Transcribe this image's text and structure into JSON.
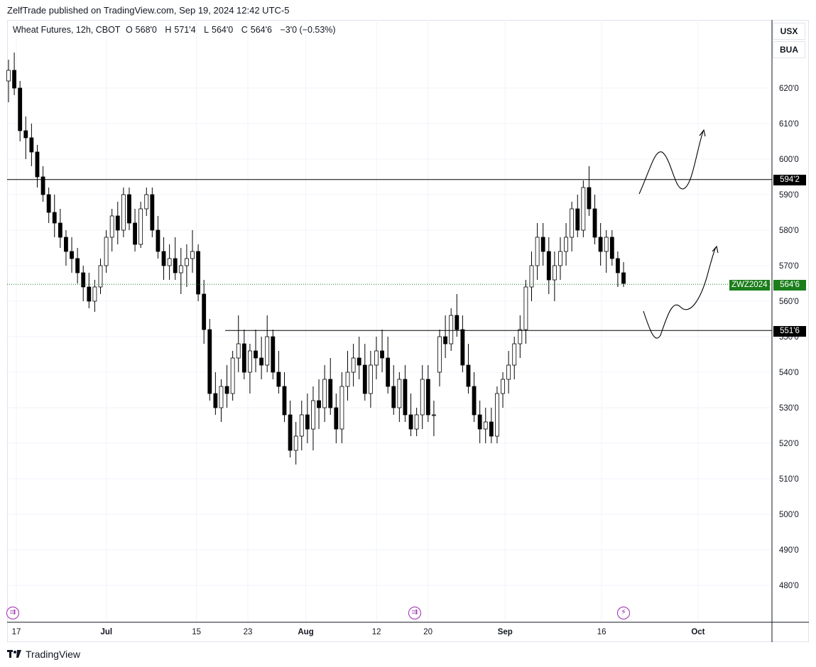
{
  "header": {
    "publish_text": "ZelfTrade published on TradingView.com, Sep 19, 2024 12:42 UTC-5"
  },
  "legend": {
    "symbol": "Wheat Futures, 12h, CBOT",
    "o_label": "O",
    "o_value": "568'0",
    "h_label": "H",
    "h_value": "571'4",
    "l_label": "L",
    "l_value": "564'0",
    "c_label": "C",
    "c_value": "564'6",
    "change": "−3'0 (−0.53%)"
  },
  "currency_buttons": [
    "USX",
    "BUA"
  ],
  "footer": {
    "brand": "TradingView"
  },
  "colors": {
    "up_fill": "#ffffff",
    "down_fill": "#000000",
    "candle_stroke": "#000000",
    "current_price": "#1b7e1b",
    "level_label_bg": "#000000",
    "event_icon": "#9c27b0"
  },
  "chart_data": {
    "type": "candlestick",
    "symbol": "ZWZ2024",
    "timeframe": "12h",
    "y_unit": "cents/bu (price'eighths)",
    "ylim": [
      470,
      632
    ],
    "y_ticks": [
      "480'0",
      "490'0",
      "500'0",
      "510'0",
      "520'0",
      "530'0",
      "540'0",
      "550'0",
      "560'0",
      "570'0",
      "580'0",
      "590'0",
      "600'0",
      "610'0",
      "620'0"
    ],
    "x_tick_labels": [
      "17",
      "Jul",
      "15",
      "23",
      "Aug",
      "12",
      "20",
      "Sep",
      "16",
      "Oct"
    ],
    "x_range": [
      "2024-06-16",
      "2024-10-02"
    ],
    "x_tick_dates": [
      "2024-06-17",
      "2024-07-01",
      "2024-07-15",
      "2024-07-23",
      "2024-08-01",
      "2024-08-12",
      "2024-08-20",
      "2024-09-01",
      "2024-09-16",
      "2024-10-01"
    ],
    "candles_ohlc_note": "approximate readings, one bar per 12h session",
    "candles": [
      [
        622,
        628,
        616,
        625
      ],
      [
        625,
        630,
        618,
        620
      ],
      [
        620,
        622,
        605,
        608
      ],
      [
        608,
        612,
        600,
        606
      ],
      [
        606,
        610,
        598,
        602
      ],
      [
        602,
        604,
        592,
        595
      ],
      [
        595,
        598,
        588,
        590
      ],
      [
        590,
        592,
        582,
        585
      ],
      [
        585,
        590,
        578,
        582
      ],
      [
        582,
        586,
        575,
        578
      ],
      [
        578,
        580,
        570,
        574
      ],
      [
        574,
        578,
        568,
        572
      ],
      [
        572,
        575,
        565,
        568
      ],
      [
        568,
        570,
        560,
        564
      ],
      [
        564,
        568,
        558,
        560
      ],
      [
        560,
        566,
        557,
        564
      ],
      [
        564,
        572,
        562,
        570
      ],
      [
        570,
        580,
        568,
        578
      ],
      [
        578,
        586,
        574,
        584
      ],
      [
        584,
        588,
        576,
        580
      ],
      [
        580,
        592,
        578,
        590
      ],
      [
        590,
        592,
        580,
        582
      ],
      [
        582,
        586,
        574,
        576
      ],
      [
        576,
        588,
        575,
        586
      ],
      [
        586,
        592,
        584,
        590
      ],
      [
        590,
        592,
        578,
        580
      ],
      [
        580,
        584,
        572,
        574
      ],
      [
        574,
        578,
        566,
        570
      ],
      [
        570,
        576,
        566,
        572
      ],
      [
        572,
        578,
        566,
        568
      ],
      [
        568,
        575,
        562,
        570
      ],
      [
        570,
        576,
        564,
        572
      ],
      [
        572,
        580,
        568,
        574
      ],
      [
        574,
        576,
        560,
        562
      ],
      [
        562,
        566,
        548,
        552
      ],
      [
        552,
        555,
        532,
        534
      ],
      [
        534,
        540,
        528,
        530
      ],
      [
        530,
        538,
        526,
        536
      ],
      [
        536,
        542,
        530,
        534
      ],
      [
        534,
        546,
        532,
        544
      ],
      [
        544,
        556,
        540,
        548
      ],
      [
        548,
        552,
        538,
        540
      ],
      [
        540,
        548,
        534,
        546
      ],
      [
        546,
        552,
        540,
        544
      ],
      [
        544,
        550,
        538,
        542
      ],
      [
        542,
        556,
        540,
        550
      ],
      [
        550,
        552,
        538,
        540
      ],
      [
        540,
        546,
        534,
        536
      ],
      [
        536,
        540,
        526,
        528
      ],
      [
        528,
        532,
        516,
        518
      ],
      [
        518,
        526,
        514,
        522
      ],
      [
        522,
        532,
        518,
        528
      ],
      [
        528,
        534,
        520,
        524
      ],
      [
        524,
        536,
        518,
        532
      ],
      [
        532,
        538,
        524,
        530
      ],
      [
        530,
        542,
        526,
        538
      ],
      [
        538,
        544,
        528,
        530
      ],
      [
        530,
        534,
        520,
        524
      ],
      [
        524,
        540,
        520,
        536
      ],
      [
        536,
        546,
        532,
        540
      ],
      [
        540,
        548,
        536,
        544
      ],
      [
        544,
        550,
        538,
        542
      ],
      [
        542,
        548,
        532,
        534
      ],
      [
        534,
        546,
        530,
        542
      ],
      [
        542,
        550,
        538,
        546
      ],
      [
        546,
        552,
        540,
        544
      ],
      [
        544,
        550,
        534,
        536
      ],
      [
        536,
        542,
        528,
        530
      ],
      [
        530,
        540,
        526,
        538
      ],
      [
        538,
        542,
        526,
        528
      ],
      [
        528,
        534,
        522,
        524
      ],
      [
        524,
        530,
        522,
        528
      ],
      [
        528,
        542,
        524,
        538
      ],
      [
        538,
        542,
        526,
        528
      ],
      [
        528,
        532,
        522,
        528
      ],
      [
        540,
        552,
        536,
        550
      ],
      [
        550,
        556,
        544,
        548
      ],
      [
        548,
        558,
        546,
        556
      ],
      [
        556,
        562,
        550,
        552
      ],
      [
        552,
        556,
        540,
        542
      ],
      [
        542,
        548,
        534,
        536
      ],
      [
        536,
        540,
        526,
        528
      ],
      [
        528,
        532,
        520,
        524
      ],
      [
        524,
        530,
        520,
        526
      ],
      [
        526,
        530,
        520,
        522
      ],
      [
        522,
        536,
        520,
        534
      ],
      [
        534,
        540,
        530,
        538
      ],
      [
        538,
        546,
        534,
        542
      ],
      [
        542,
        550,
        538,
        548
      ],
      [
        548,
        556,
        544,
        552
      ],
      [
        552,
        566,
        548,
        564
      ],
      [
        564,
        574,
        560,
        570
      ],
      [
        570,
        582,
        566,
        578
      ],
      [
        578,
        582,
        570,
        574
      ],
      [
        574,
        578,
        562,
        566
      ],
      [
        566,
        574,
        560,
        570
      ],
      [
        570,
        578,
        566,
        574
      ],
      [
        574,
        582,
        570,
        578
      ],
      [
        578,
        588,
        574,
        586
      ],
      [
        586,
        590,
        578,
        580
      ],
      [
        580,
        594,
        578,
        592
      ],
      [
        592,
        598,
        584,
        586
      ],
      [
        586,
        590,
        576,
        578
      ],
      [
        578,
        582,
        570,
        574
      ],
      [
        574,
        580,
        568,
        578
      ],
      [
        578,
        580,
        570,
        572
      ],
      [
        572,
        574,
        564,
        568
      ],
      [
        568,
        571,
        564,
        565
      ]
    ],
    "horizontal_levels": [
      {
        "price": "594'2",
        "value": 594.25
      },
      {
        "price": "551'6",
        "value": 551.75
      }
    ],
    "current_price": {
      "symbol_tag": "ZWZ2024",
      "value_label": "564'6",
      "value": 564.75
    },
    "annotations": [
      "hand-drawn projection: dip to ~590 then wave above 600 toward ~610",
      "hand-drawn projection: dip to ~550 then rally toward ~577"
    ]
  }
}
